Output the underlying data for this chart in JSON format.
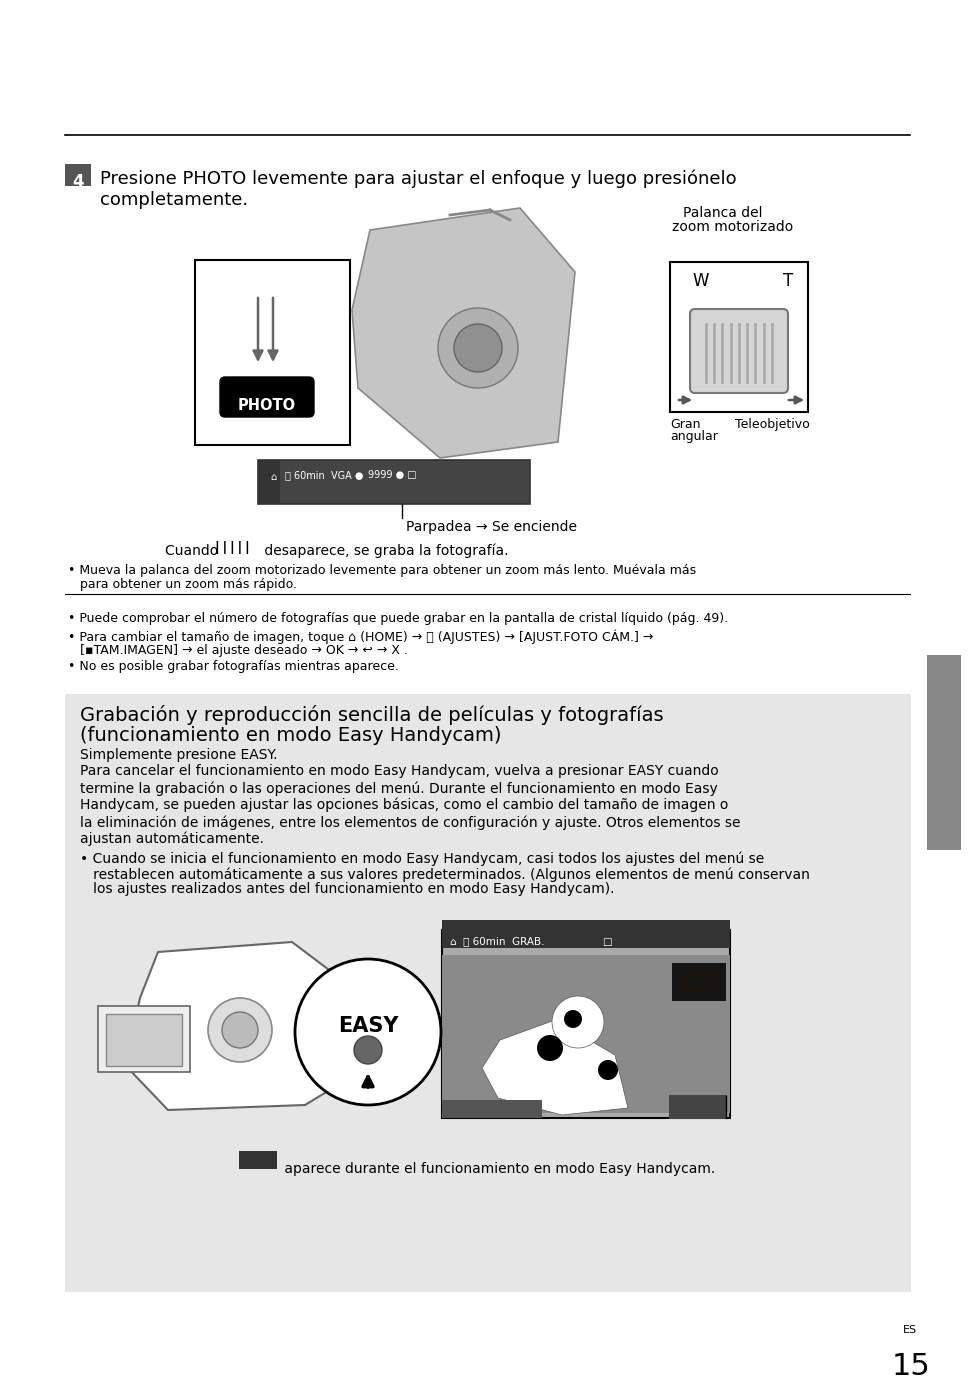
{
  "bg_color": "#ffffff",
  "gray_box_bg": "#e6e6e6",
  "sidebar_color": "#888888",
  "step_badge_bg": "#555555",
  "step_badge_color": "#ffffff",
  "page_num": "15",
  "es_label": "ES",
  "step4_line1": "Presione PHOTO levemente para ajustar el enfoque y luego presiónelo",
  "step4_line2": "completamente.",
  "step4_fs": 13,
  "palanca_line1": "Palanca del",
  "palanca_line2": "zoom motorizado",
  "gran_text": "Gran",
  "angular_text": "angular",
  "teleobjetivo_text": "Teleobjetivo",
  "parpadea_text": "Parpadea → Se enciende",
  "cuando_text1": "Cuando ",
  "cuando_bar": "| | | | |",
  "cuando_text2": " desaparece, se graba la fotografía.",
  "bullet1a": "• Mueva la palanca del zoom motorizado levemente para obtener un zoom más lento. Muévala más",
  "bullet1b": "   para obtener un zoom más rápido.",
  "bullet_a": "• Puede comprobar el número de fotografías que puede grabar en la pantalla de cristal líquido (pág. 49).",
  "bullet_b1": "• Para cambiar el tamaño de imagen, toque ⌂ (HOME) → ⎈ (AJUSTES) → [AJUST.FOTO CÁM.] →",
  "bullet_b2": "   [▪TAM.IMAGEN] → el ajuste deseado → OK → ↩ → X .",
  "bullet_c": "• No es posible grabar fotografías mientras aparece.",
  "gray_title1": "Grabación y reproducción sencilla de películas y fotografías",
  "gray_title2": "(funcionamiento en modo Easy Handycam)",
  "gray_sub": "Simplemente presione EASY.",
  "gray_p1": "Para cancelar el funcionamiento en modo Easy Handycam, vuelva a presionar EASY cuando",
  "gray_p2": "termine la grabación o las operaciones del menú. Durante el funcionamiento en modo Easy",
  "gray_p3": "Handycam, se pueden ajustar las opciones básicas, como el cambio del tamaño de imagen o",
  "gray_p4": "la eliminación de imágenes, entre los elementos de configuración y ajuste. Otros elementos se",
  "gray_p5": "ajustan automáticamente.",
  "gray_b1": "• Cuando se inicia el funcionamiento en modo Easy Handycam, casi todos los ajustes del menú se",
  "gray_b2": "   restablecen automáticamente a sus valores predeterminados. (Algunos elementos de menú conservan",
  "gray_b3": "   los ajustes realizados antes del funcionamiento en modo Easy Handycam).",
  "easy_cap2": " aparece durante el funcionamiento en modo Easy Handycam.",
  "grabacion_label": "Grabación",
  "body_fs": 10,
  "small_fs": 9
}
